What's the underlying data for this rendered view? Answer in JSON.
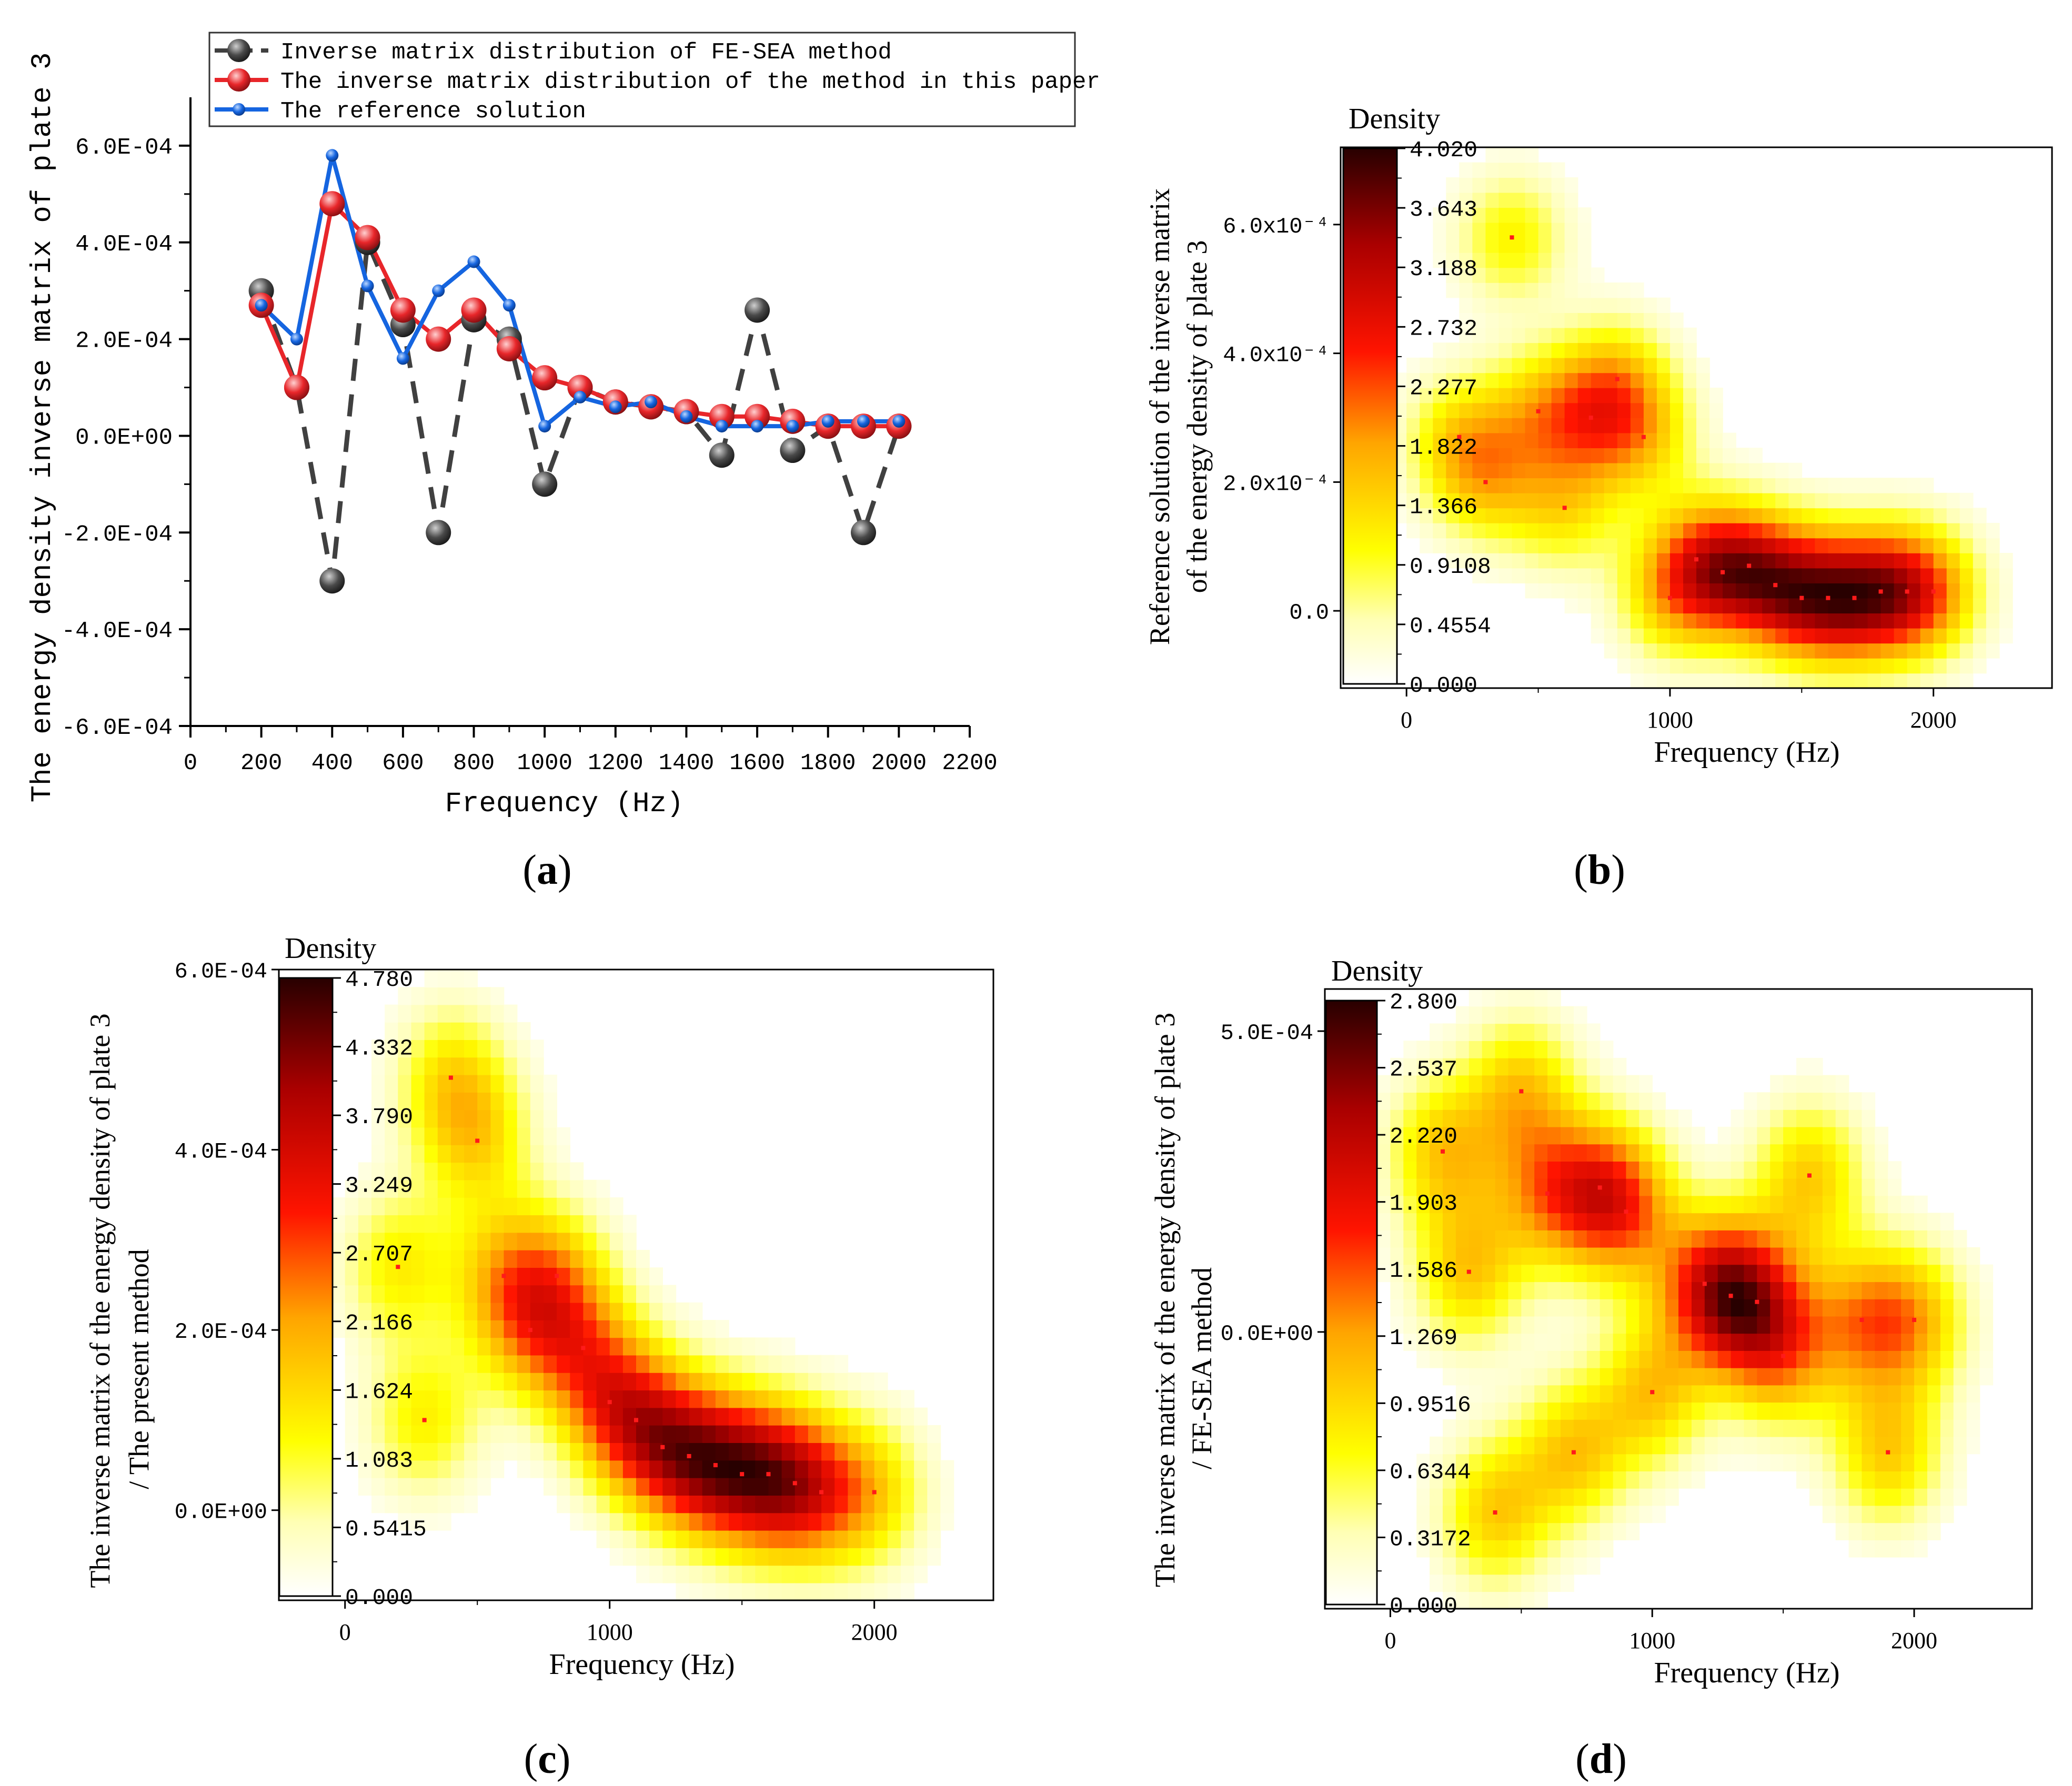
{
  "panels": {
    "a": {
      "label": "(a)",
      "label_letter": "a"
    },
    "b": {
      "label": "(b)",
      "label_letter": "b"
    },
    "c": {
      "label": "(c)",
      "label_letter": "c"
    },
    "d": {
      "label": "(d)",
      "label_letter": "d"
    }
  },
  "chart_data": [
    {
      "id": "a",
      "type": "line",
      "title": "",
      "xlabel": "Frequency (Hz)",
      "ylabel": "The energy density inverse matrix of plate 3",
      "xlim": [
        0,
        2200
      ],
      "ylim": [
        -0.0006,
        0.0007
      ],
      "xticks": [
        0,
        200,
        400,
        600,
        800,
        1000,
        1200,
        1400,
        1600,
        1800,
        2000,
        2200
      ],
      "xtick_labels": [
        "0",
        "200",
        "400",
        "600",
        "800",
        "1000",
        "1200",
        "1400",
        "1600",
        "1800",
        "2000",
        "2200"
      ],
      "yticks": [
        -0.0006,
        -0.0004,
        -0.0002,
        0,
        0.0002,
        0.0004,
        0.0006
      ],
      "ytick_labels": [
        "-6.0E-04",
        "-4.0E-04",
        "-2.0E-04",
        "0.0E+00",
        "2.0E-04",
        "4.0E-04",
        "6.0E-04"
      ],
      "legend_position": "top",
      "x": [
        200,
        300,
        400,
        500,
        600,
        700,
        800,
        900,
        1000,
        1100,
        1200,
        1300,
        1400,
        1500,
        1600,
        1700,
        1800,
        1900,
        2000
      ],
      "series": [
        {
          "name": "Inverse matrix distribution of FE-SEA method",
          "color": "#404040",
          "style": "dashed",
          "marker": "large-sphere",
          "values": [
            0.0003,
            0.0001,
            -0.0003,
            0.0004,
            0.00023,
            -0.0002,
            0.00024,
            0.0002,
            -0.0001,
            0.0001,
            7e-05,
            6e-05,
            5e-05,
            -4e-05,
            0.00026,
            -3e-05,
            2e-05,
            -0.0002,
            2e-05
          ]
        },
        {
          "name": "The inverse matrix distribution of the method in this paper",
          "color": "#e8262a",
          "style": "solid",
          "marker": "large-sphere",
          "values": [
            0.00027,
            0.0001,
            0.00048,
            0.00041,
            0.00026,
            0.0002,
            0.00026,
            0.00018,
            0.00012,
            0.0001,
            7e-05,
            6e-05,
            5e-05,
            4e-05,
            4e-05,
            3e-05,
            2e-05,
            2e-05,
            2e-05
          ]
        },
        {
          "name": "The reference solution",
          "color": "#1565e0",
          "style": "solid",
          "marker": "small-dot",
          "values": [
            0.00027,
            0.0002,
            0.00058,
            0.00031,
            0.00016,
            0.0003,
            0.00036,
            0.00027,
            2e-05,
            8e-05,
            6e-05,
            7e-05,
            4e-05,
            2e-05,
            2e-05,
            2e-05,
            3e-05,
            3e-05,
            3e-05
          ]
        }
      ]
    },
    {
      "id": "b",
      "type": "heatmap",
      "title": "",
      "legend_title": "Density",
      "xlabel": "Frequency (Hz)",
      "ylabel_line1": "Reference solution of the inverse matrix",
      "ylabel_line2": "of the energy density of plate 3",
      "xlim": [
        -250,
        2450
      ],
      "ylim": [
        -0.00012,
        0.00072
      ],
      "xticks": [
        0,
        1000,
        2000
      ],
      "xtick_labels": [
        "0",
        "1000",
        "2000"
      ],
      "yticks": [
        0,
        0.0002,
        0.0004,
        0.0006
      ],
      "ytick_labels": [
        "0.0",
        "2.0x10⁻⁴",
        "4.0x10⁻⁴",
        "6.0x10⁻⁴"
      ],
      "colorbar_ticks": [
        "4.020",
        "3.643",
        "3.188",
        "2.732",
        "2.277",
        "1.822",
        "1.366",
        "0.9108",
        "0.4554",
        "0.000"
      ],
      "colorbar_range": [
        0,
        4.02
      ],
      "points": [
        [
          200,
          0.00027
        ],
        [
          300,
          0.0002
        ],
        [
          400,
          0.00058
        ],
        [
          500,
          0.00031
        ],
        [
          600,
          0.00016
        ],
        [
          700,
          0.0003
        ],
        [
          800,
          0.00036
        ],
        [
          900,
          0.00027
        ],
        [
          1000,
          2e-05
        ],
        [
          1100,
          8e-05
        ],
        [
          1200,
          6e-05
        ],
        [
          1300,
          7e-05
        ],
        [
          1400,
          4e-05
        ],
        [
          1500,
          2e-05
        ],
        [
          1600,
          2e-05
        ],
        [
          1700,
          2e-05
        ],
        [
          1800,
          3e-05
        ],
        [
          1900,
          3e-05
        ],
        [
          2000,
          3e-05
        ]
      ]
    },
    {
      "id": "c",
      "type": "heatmap",
      "title": "",
      "legend_title": "Density",
      "xlabel": "Frequency (Hz)",
      "ylabel_line1": "The inverse matrix of the energy density of plate 3",
      "ylabel_line2": "/ The present method",
      "xlim": [
        -250,
        2450
      ],
      "ylim": [
        -0.0001,
        0.0006
      ],
      "xticks": [
        0,
        1000,
        2000
      ],
      "xtick_labels": [
        "0",
        "1000",
        "2000"
      ],
      "yticks": [
        0,
        0.0002,
        0.0004,
        0.0006
      ],
      "ytick_labels": [
        "0.0E+00",
        "2.0E-04",
        "4.0E-04",
        "6.0E-04"
      ],
      "colorbar_ticks": [
        "4.780",
        "4.332",
        "3.790",
        "3.249",
        "2.707",
        "2.166",
        "1.624",
        "1.083",
        "0.5415",
        "0.000"
      ],
      "colorbar_range": [
        0,
        4.78
      ],
      "points": [
        [
          200,
          0.00027
        ],
        [
          300,
          0.0001
        ],
        [
          400,
          0.00048
        ],
        [
          500,
          0.00041
        ],
        [
          600,
          0.00026
        ],
        [
          700,
          0.0002
        ],
        [
          800,
          0.00026
        ],
        [
          900,
          0.00018
        ],
        [
          1000,
          0.00012
        ],
        [
          1100,
          0.0001
        ],
        [
          1200,
          7e-05
        ],
        [
          1300,
          6e-05
        ],
        [
          1400,
          5e-05
        ],
        [
          1500,
          4e-05
        ],
        [
          1600,
          4e-05
        ],
        [
          1700,
          3e-05
        ],
        [
          1800,
          2e-05
        ],
        [
          2000,
          2e-05
        ]
      ]
    },
    {
      "id": "d",
      "type": "heatmap",
      "title": "",
      "legend_title": "Density",
      "xlabel": "Frequency (Hz)",
      "ylabel_line1": "The inverse matrix of the energy density of plate 3",
      "ylabel_line2": "/ FE-SEA method",
      "xlim": [
        -250,
        2450
      ],
      "ylim": [
        -0.00046,
        0.00057
      ],
      "xticks": [
        0,
        1000,
        2000
      ],
      "xtick_labels": [
        "0",
        "1000",
        "2000"
      ],
      "yticks": [
        0,
        0.0005
      ],
      "ytick_labels": [
        "0.0E+00",
        "5.0E-04"
      ],
      "colorbar_ticks": [
        "2.800",
        "2.537",
        "2.220",
        "1.903",
        "1.586",
        "1.269",
        "0.9516",
        "0.6344",
        "0.3172",
        "0.000"
      ],
      "colorbar_range": [
        0,
        2.8
      ],
      "points": [
        [
          200,
          0.0003
        ],
        [
          300,
          0.0001
        ],
        [
          400,
          -0.0003
        ],
        [
          500,
          0.0004
        ],
        [
          600,
          0.00023
        ],
        [
          700,
          -0.0002
        ],
        [
          800,
          0.00024
        ],
        [
          900,
          0.0002
        ],
        [
          1000,
          -0.0001
        ],
        [
          1200,
          8e-05
        ],
        [
          1300,
          6e-05
        ],
        [
          1400,
          5e-05
        ],
        [
          1500,
          -4e-05
        ],
        [
          1600,
          0.00026
        ],
        [
          1800,
          2e-05
        ],
        [
          1900,
          -0.0002
        ],
        [
          2000,
          2e-05
        ]
      ]
    }
  ]
}
